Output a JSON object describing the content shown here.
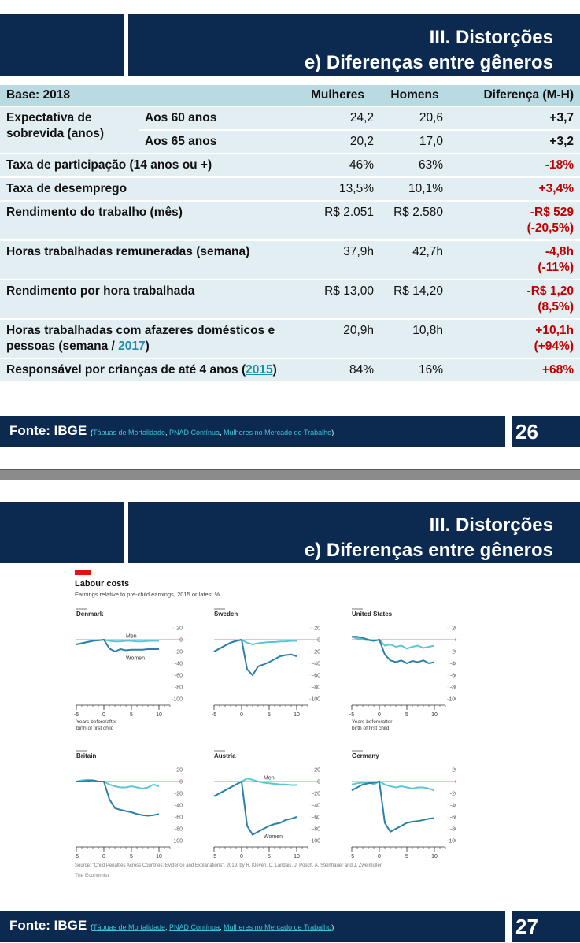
{
  "slides": [
    {
      "header": {
        "title_lines": [
          "III. Distorções",
          "e) Diferenças entre gêneros"
        ]
      },
      "table": {
        "header": [
          "Base: 2018",
          "Mulheres",
          "Homens",
          "Diferença (M-H)"
        ],
        "rows": [
          {
            "label": "Expectativa de sobrevida (anos)",
            "sub": "Aos 60 anos",
            "cells": [
              "24,2",
              "20,6"
            ],
            "diff": [
              "+3,7"
            ],
            "highlight": false
          },
          {
            "sub": "Aos 65 anos",
            "cells": [
              "20,2",
              "17,0"
            ],
            "diff": [
              "+3,2"
            ],
            "highlight": false
          },
          {
            "label": "Taxa de participação (14 anos ou +)",
            "cells": [
              "46%",
              "63%"
            ],
            "diff": [
              "-18%"
            ],
            "highlight": true
          },
          {
            "label": "Taxa de desemprego",
            "cells": [
              "13,5%",
              "10,1%"
            ],
            "diff": [
              "+3,4%"
            ],
            "highlight": true
          },
          {
            "label": "Rendimento do trabalho (mês)",
            "cells": [
              "R$ 2.051",
              "R$ 2.580"
            ],
            "diff": [
              "-R$ 529",
              "(-20,5%)"
            ],
            "highlight": true
          },
          {
            "label": "Horas trabalhadas remuneradas (semana)",
            "cells": [
              "37,9h",
              "42,7h"
            ],
            "diff": [
              "-4,8h",
              "(-11%)"
            ],
            "highlight": true
          },
          {
            "label": "Rendimento por hora trabalhada",
            "cells": [
              "R$ 13,00",
              "R$ 14,20"
            ],
            "diff": [
              "-R$ 1,20",
              "(8,5%)"
            ],
            "highlight": true
          },
          {
            "label": [
              {
                "text": "Horas trabalhadas com afazeres domésticos e pessoas (semana / ",
                "link": false
              },
              {
                "text": "2017",
                "link": true
              },
              {
                "text": ")",
                "link": false
              }
            ],
            "cells": [
              "20,9h",
              "10,8h"
            ],
            "diff": [
              "+10,1h",
              "(+94%)"
            ],
            "highlight": true
          },
          {
            "label": [
              {
                "text": "Responsável por crianças de até 4 anos ",
                "link": false
              },
              {
                "text": "(",
                "link": false
              },
              {
                "text": "2015",
                "link": true
              },
              {
                "text": ")",
                "link": false
              }
            ],
            "cells": [
              "84%",
              "16%"
            ],
            "diff": [
              "+68%"
            ],
            "highlight": true
          }
        ]
      },
      "footer": {
        "source": "Fonte: IBGE",
        "parts": [
          {
            "text": "(",
            "link": false
          },
          {
            "text": "Tábuas de Mortalidade",
            "link": true
          },
          {
            "text": ", ",
            "link": false
          },
          {
            "text": "PNAD Contínua",
            "link": true
          },
          {
            "text": ", ",
            "link": false
          },
          {
            "text": "Mulheres no Mercado de Trabalho",
            "link": true
          },
          {
            "text": ")",
            "link": false
          }
        ],
        "page": "26"
      }
    },
    {
      "header": {
        "title_lines": [
          "III. Distorções",
          "e) Diferenças entre gêneros"
        ]
      },
      "figure": {
        "title": "Labour costs",
        "subtitle": "Earnings relative to pre-child earnings, 2015 or latest %",
        "source": "Source: \"Child Penalties Across Countries: Evidence and Explanations\", 2019, by H. Kleven, C. Landais, J. Posch, A. Steinhauer and J. Zweimüller",
        "brand": "The Economist"
      },
      "footer": {
        "source": "Fonte: IBGE",
        "parts": [
          {
            "text": "(",
            "link": false
          },
          {
            "text": "Tábuas de Mortalidade",
            "link": true
          },
          {
            "text": ", ",
            "link": false
          },
          {
            "text": "PNAD Contínua",
            "link": true
          },
          {
            "text": ", ",
            "link": false
          },
          {
            "text": "Mulheres no Mercado de Trabalho",
            "link": true
          },
          {
            "text": ")",
            "link": false
          }
        ],
        "page": "27"
      }
    }
  ],
  "chart_data": [
    {
      "type": "line",
      "title": "Denmark",
      "xlabel": [
        "Years before/after",
        "birth of first child"
      ],
      "inline_labels": true,
      "x": [
        -5,
        -4,
        -3,
        -2,
        -1,
        0,
        1,
        2,
        3,
        4,
        5,
        6,
        7,
        8,
        9,
        10
      ],
      "xlim": [
        -5,
        12
      ],
      "xticks": [
        -5,
        0,
        5,
        10
      ],
      "ylim": [
        -100,
        20
      ],
      "yticks": [
        20,
        0,
        -20,
        -40,
        -60,
        -80,
        -100
      ],
      "zero_line": true,
      "series": [
        {
          "name": "Men",
          "color": "#5cc6d6",
          "values": [
            -8,
            -6,
            -4,
            -2,
            -1,
            0,
            -2,
            -3,
            -3,
            -2,
            -2,
            -3,
            -3,
            -2,
            -2,
            -2
          ]
        },
        {
          "name": "Women",
          "color": "#2b7fa9",
          "values": [
            -8,
            -6,
            -4,
            -2,
            -1,
            0,
            -15,
            -20,
            -16,
            -18,
            -17,
            -17,
            -17,
            -16,
            -16,
            -16
          ]
        }
      ]
    },
    {
      "type": "line",
      "title": "Sweden",
      "x": [
        -5,
        -4,
        -3,
        -2,
        -1,
        0,
        1,
        2,
        3,
        4,
        5,
        6,
        7,
        8,
        9,
        10
      ],
      "xlim": [
        -5,
        12
      ],
      "xticks": [
        -5,
        0,
        5,
        10
      ],
      "ylim": [
        -100,
        20
      ],
      "yticks": [
        20,
        0,
        -20,
        -40,
        -60,
        -80,
        -100
      ],
      "zero_line": true,
      "series": [
        {
          "color": "#5cc6d6",
          "values": [
            -20,
            -15,
            -10,
            -5,
            -2,
            0,
            -5,
            -8,
            -6,
            -5,
            -4,
            -4,
            -3,
            -3,
            -2,
            -2
          ]
        },
        {
          "color": "#2b7fa9",
          "values": [
            -20,
            -15,
            -10,
            -5,
            -2,
            0,
            -50,
            -60,
            -45,
            -42,
            -38,
            -33,
            -28,
            -26,
            -25,
            -28
          ]
        }
      ]
    },
    {
      "type": "line",
      "title": "United States",
      "xlabel": [
        "Years before/after",
        "birth of first child"
      ],
      "x": [
        -5,
        -4,
        -3,
        -2,
        -1,
        0,
        1,
        2,
        3,
        4,
        5,
        6,
        7,
        8,
        9,
        10
      ],
      "xlim": [
        -5,
        12
      ],
      "xticks": [
        -5,
        0,
        5,
        10
      ],
      "ylim": [
        -100,
        20
      ],
      "yticks": [
        20,
        0,
        -20,
        -40,
        -60,
        -80,
        -100
      ],
      "zero_line": true,
      "series": [
        {
          "color": "#5cc6d6",
          "values": [
            5,
            2,
            0,
            -1,
            -2,
            0,
            -10,
            -8,
            -12,
            -10,
            -15,
            -12,
            -10,
            -14,
            -12,
            -10
          ]
        },
        {
          "color": "#2b7fa9",
          "values": [
            5,
            5,
            3,
            0,
            -2,
            0,
            -25,
            -35,
            -38,
            -35,
            -40,
            -36,
            -38,
            -35,
            -40,
            -38
          ]
        }
      ]
    },
    {
      "type": "line",
      "title": "Britain",
      "x": [
        -5,
        -4,
        -3,
        -2,
        -1,
        0,
        1,
        2,
        3,
        4,
        5,
        6,
        7,
        8,
        9,
        10
      ],
      "xlim": [
        -5,
        12
      ],
      "xticks": [
        -5,
        0,
        5,
        10
      ],
      "ylim": [
        -100,
        20
      ],
      "yticks": [
        20,
        0,
        -20,
        -40,
        -60,
        -80,
        -100
      ],
      "zero_line": true,
      "series": [
        {
          "color": "#5cc6d6",
          "values": [
            0,
            2,
            3,
            2,
            0,
            0,
            -5,
            -8,
            -10,
            -10,
            -8,
            -10,
            -12,
            -10,
            -5,
            -8
          ]
        },
        {
          "color": "#2b7fa9",
          "values": [
            0,
            0,
            1,
            2,
            0,
            0,
            -30,
            -45,
            -48,
            -50,
            -52,
            -55,
            -57,
            -58,
            -57,
            -55
          ]
        }
      ]
    },
    {
      "type": "line",
      "title": "Austria",
      "inline_labels": true,
      "x": [
        -5,
        -4,
        -3,
        -2,
        -1,
        0,
        1,
        2,
        3,
        4,
        5,
        6,
        7,
        8,
        9,
        10
      ],
      "xlim": [
        -5,
        12
      ],
      "xticks": [
        -5,
        0,
        5,
        10
      ],
      "ylim": [
        -100,
        20
      ],
      "yticks": [
        20,
        0,
        -20,
        -40,
        -60,
        -80,
        -100
      ],
      "zero_line": true,
      "series": [
        {
          "name": "Men",
          "color": "#5cc6d6",
          "values": [
            -25,
            -20,
            -15,
            -10,
            -5,
            0,
            5,
            3,
            0,
            -2,
            -3,
            -4,
            -5,
            -5,
            -6,
            -6
          ]
        },
        {
          "name": "Women",
          "color": "#2b7fa9",
          "values": [
            -25,
            -20,
            -15,
            -10,
            -5,
            0,
            -75,
            -90,
            -85,
            -80,
            -75,
            -72,
            -70,
            -65,
            -63,
            -60
          ]
        }
      ]
    },
    {
      "type": "line",
      "title": "Germany",
      "x": [
        -5,
        -4,
        -3,
        -2,
        -1,
        0,
        1,
        2,
        3,
        4,
        5,
        6,
        7,
        8,
        9,
        10
      ],
      "xlim": [
        -5,
        12
      ],
      "xticks": [
        -5,
        0,
        5,
        10
      ],
      "ylim": [
        -100,
        20
      ],
      "yticks": [
        20,
        0,
        -20,
        -40,
        -60,
        -80,
        -100
      ],
      "zero_line": true,
      "series": [
        {
          "color": "#5cc6d6",
          "values": [
            -5,
            -3,
            -2,
            -1,
            -5,
            0,
            -5,
            -8,
            -10,
            -8,
            -10,
            -12,
            -10,
            -10,
            -12,
            -15
          ]
        },
        {
          "color": "#2b7fa9",
          "values": [
            -15,
            -10,
            -5,
            -3,
            -2,
            0,
            -70,
            -85,
            -80,
            -75,
            -70,
            -68,
            -67,
            -65,
            -63,
            -62
          ]
        }
      ]
    }
  ]
}
